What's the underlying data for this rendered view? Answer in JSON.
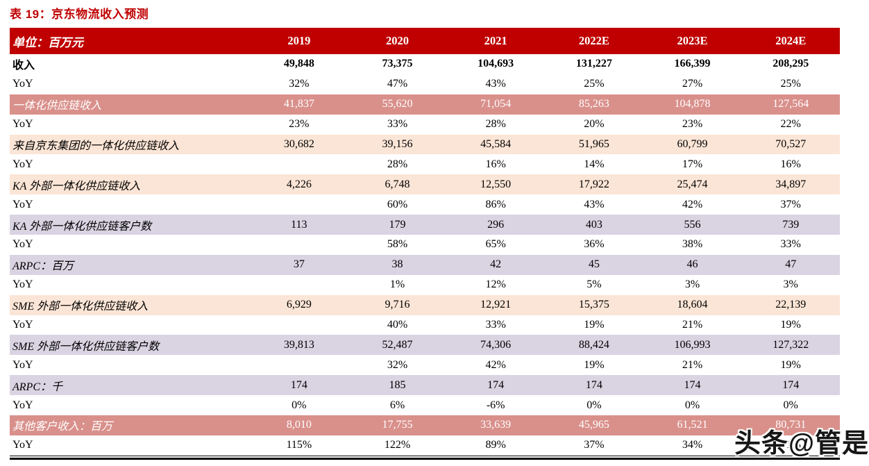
{
  "page": {
    "title": "表 19：京东物流收入预测",
    "watermark": "头条@管是"
  },
  "colors": {
    "red": "#C00000",
    "rose": "#D9908B",
    "peach": "#FBE5D6",
    "lavender": "#D9D3E2"
  },
  "table": {
    "unit_label": "单位：百万元",
    "columns": [
      "2019",
      "2020",
      "2021",
      "2022E",
      "2023E",
      "2024E"
    ],
    "rows": [
      {
        "label": "收入",
        "style": "bold",
        "values": [
          "49,848",
          "73,375",
          "104,693",
          "131,227",
          "166,399",
          "208,295"
        ]
      },
      {
        "label": "YoY",
        "style": "plain",
        "values": [
          "32%",
          "47%",
          "43%",
          "25%",
          "27%",
          "25%"
        ]
      },
      {
        "label": "一体化供应链收入",
        "style": "rose",
        "values": [
          "41,837",
          "55,620",
          "71,054",
          "85,263",
          "104,878",
          "127,564"
        ]
      },
      {
        "label": "YoY",
        "style": "plain",
        "values": [
          "23%",
          "33%",
          "28%",
          "20%",
          "23%",
          "22%"
        ]
      },
      {
        "label": "来自京东集团的一体化供应链收入",
        "style": "peach",
        "values": [
          "30,682",
          "39,156",
          "45,584",
          "51,965",
          "60,799",
          "70,527"
        ]
      },
      {
        "label": "YoY",
        "style": "plain",
        "values": [
          "",
          "28%",
          "16%",
          "14%",
          "17%",
          "16%"
        ]
      },
      {
        "label": "KA 外部一体化供应链收入",
        "style": "peach",
        "values": [
          "4,226",
          "6,748",
          "12,550",
          "17,922",
          "25,474",
          "34,897"
        ]
      },
      {
        "label": "YoY",
        "style": "plain",
        "values": [
          "",
          "60%",
          "86%",
          "43%",
          "42%",
          "37%"
        ]
      },
      {
        "label": "KA 外部一体化供应链客户数",
        "style": "lavender",
        "values": [
          "113",
          "179",
          "296",
          "403",
          "556",
          "739"
        ]
      },
      {
        "label": "YoY",
        "style": "plain",
        "values": [
          "",
          "58%",
          "65%",
          "36%",
          "38%",
          "33%"
        ]
      },
      {
        "label": "ARPC：百万",
        "style": "lavender",
        "values": [
          "37",
          "38",
          "42",
          "45",
          "46",
          "47"
        ]
      },
      {
        "label": "YoY",
        "style": "plain",
        "values": [
          "",
          "1%",
          "12%",
          "5%",
          "3%",
          "3%"
        ]
      },
      {
        "label": "SME 外部一体化供应链收入",
        "style": "peach",
        "values": [
          "6,929",
          "9,716",
          "12,921",
          "15,375",
          "18,604",
          "22,139"
        ]
      },
      {
        "label": "YoY",
        "style": "plain",
        "values": [
          "",
          "40%",
          "33%",
          "19%",
          "21%",
          "19%"
        ]
      },
      {
        "label": "SME 外部一体化供应链客户数",
        "style": "lavender",
        "values": [
          "39,813",
          "52,487",
          "74,306",
          "88,424",
          "106,993",
          "127,322"
        ]
      },
      {
        "label": "YoY",
        "style": "plain",
        "values": [
          "",
          "32%",
          "42%",
          "19%",
          "21%",
          "19%"
        ]
      },
      {
        "label": "ARPC：千",
        "style": "lavender",
        "values": [
          "174",
          "185",
          "174",
          "174",
          "174",
          "174"
        ]
      },
      {
        "label": "YoY",
        "style": "plain",
        "values": [
          "0%",
          "6%",
          "-6%",
          "0%",
          "0%",
          "0%"
        ]
      },
      {
        "label": "其他客户收入：百万",
        "style": "rose",
        "values": [
          "8,010",
          "17,755",
          "33,639",
          "45,965",
          "61,521",
          "80,731"
        ]
      },
      {
        "label": "YoY",
        "style": "plain",
        "values": [
          "115%",
          "122%",
          "89%",
          "37%",
          "34%",
          "31%"
        ]
      }
    ]
  }
}
